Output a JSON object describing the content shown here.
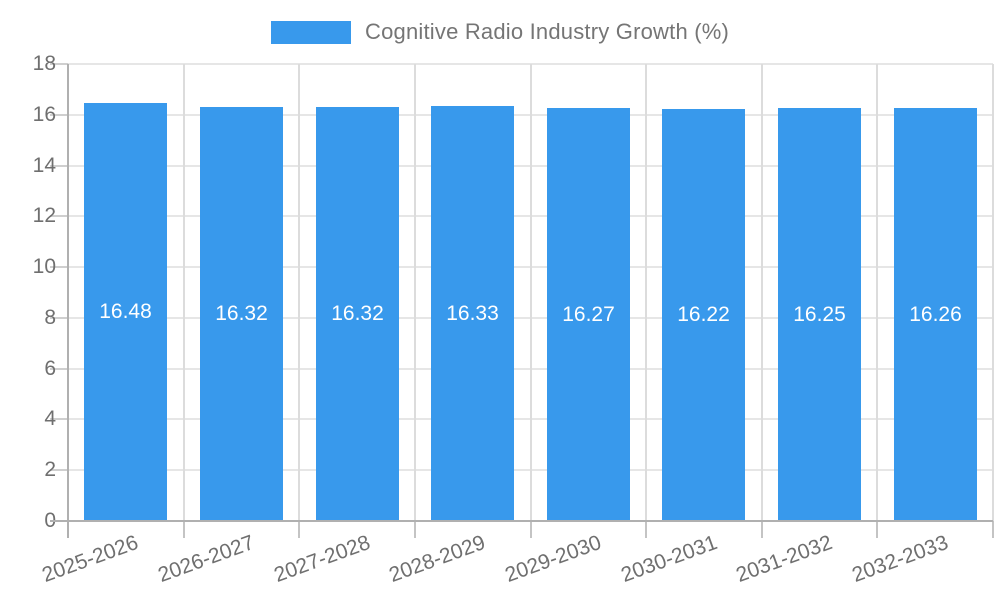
{
  "legend": {
    "label": "Cognitive Radio Industry Growth (%)"
  },
  "chart_data": {
    "type": "bar",
    "title": "Cognitive Radio Industry Growth (%)",
    "categories": [
      "2025-2026",
      "2026-2027",
      "2027-2028",
      "2028-2029",
      "2029-2030",
      "2030-2031",
      "2031-2032",
      "2032-2033"
    ],
    "values": [
      16.48,
      16.32,
      16.32,
      16.33,
      16.27,
      16.22,
      16.25,
      16.26
    ],
    "value_labels": [
      "16.48",
      "16.32",
      "16.32",
      "16.33",
      "16.27",
      "16.22",
      "16.25",
      "16.26"
    ],
    "xlabel": "",
    "ylabel": "",
    "ylim": [
      0,
      18
    ],
    "ytick_step": 2,
    "ytick_labels": [
      "0",
      "2",
      "4",
      "6",
      "8",
      "10",
      "12",
      "14",
      "16",
      "18"
    ],
    "grid": true,
    "legend_position": "top",
    "x_label_rotation_deg": -20
  },
  "colors": {
    "bar": "#3899ec",
    "value_text": "#ffffff",
    "axis_text": "#6f6f6f",
    "legend_text": "#757575",
    "h_gridline": "#e6e6e6",
    "v_gridline": "#dcdcdc",
    "axis_line": "#b0b0b0",
    "background": "#ffffff"
  }
}
